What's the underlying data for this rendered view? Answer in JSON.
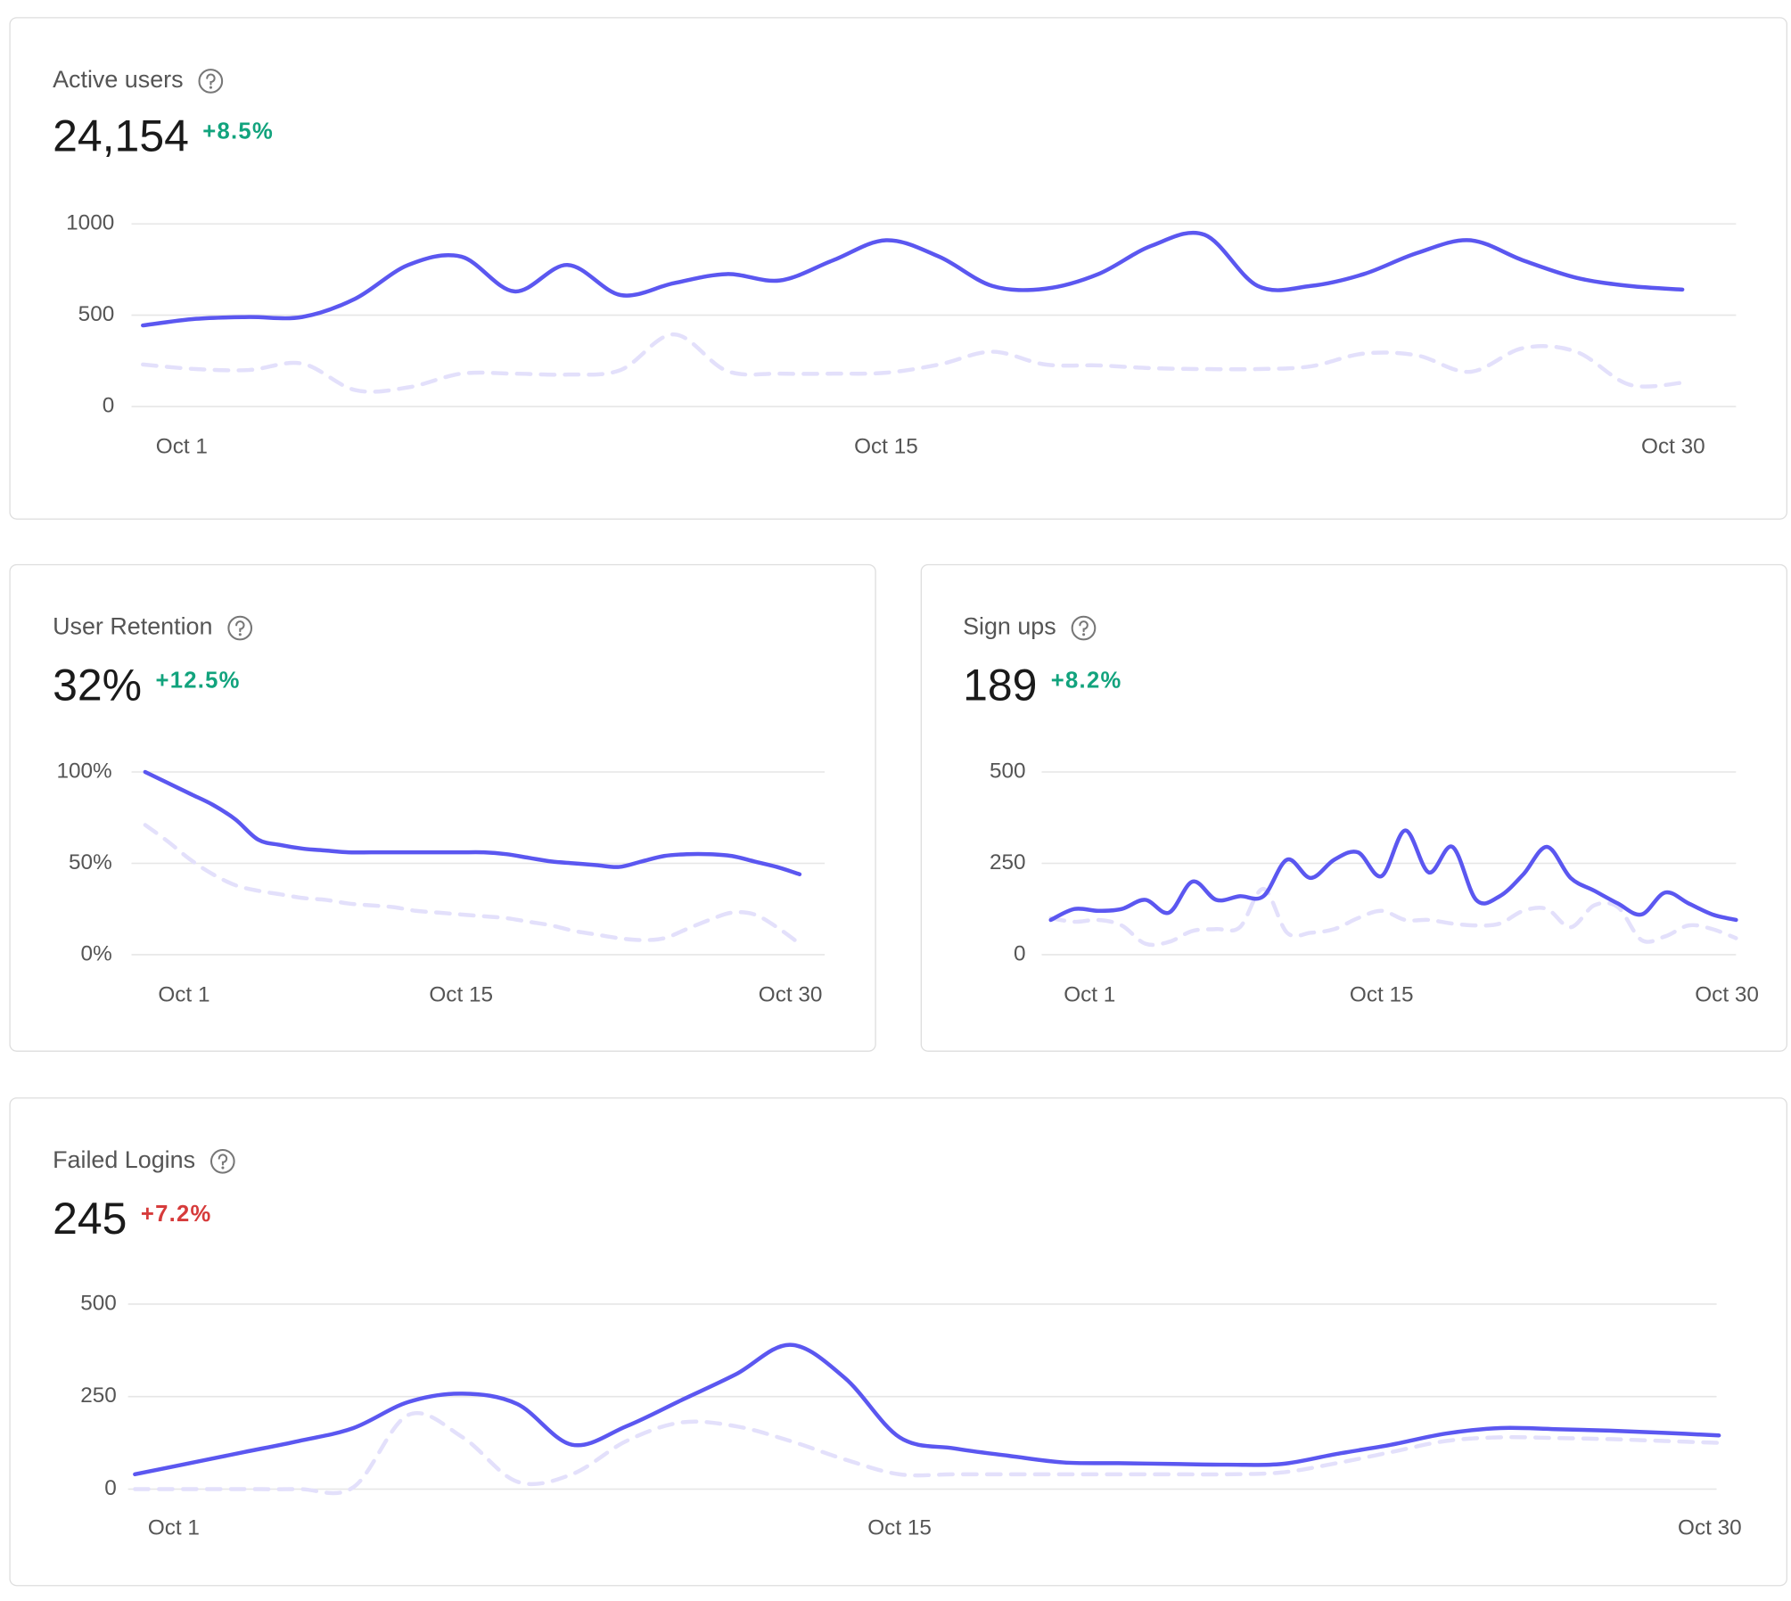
{
  "chart_data": [
    {
      "type": "line",
      "title": "Active users",
      "kpi": "24,154",
      "change": "+8.5%",
      "change_color": "#12a37d",
      "categories": [
        "Oct 1",
        null,
        null,
        null,
        null,
        null,
        null,
        null,
        null,
        null,
        null,
        null,
        null,
        null,
        "Oct 15",
        null,
        null,
        null,
        null,
        null,
        null,
        null,
        null,
        null,
        null,
        null,
        null,
        null,
        null,
        "Oct 30"
      ],
      "ylim": [
        0,
        1000
      ],
      "yticks": [
        0,
        500,
        1000
      ],
      "grid": true,
      "series": [
        {
          "color": "#5b57f0",
          "style": "solid",
          "values": [
            444,
            480,
            490,
            490,
            590,
            775,
            820,
            630,
            775,
            610,
            675,
            725,
            690,
            800,
            910,
            820,
            660,
            645,
            725,
            880,
            940,
            660,
            660,
            725,
            840,
            910,
            800,
            705,
            660,
            640
          ]
        },
        {
          "color": "#e3e0fb",
          "style": "dashed",
          "values": [
            230,
            205,
            200,
            235,
            90,
            105,
            180,
            180,
            175,
            200,
            395,
            195,
            180,
            180,
            185,
            230,
            300,
            230,
            225,
            210,
            205,
            205,
            220,
            290,
            280,
            190,
            320,
            300,
            120,
            130
          ]
        }
      ]
    },
    {
      "type": "line",
      "title": "User Retention",
      "kpi": "32%",
      "change": "+12.5%",
      "change_color": "#12a37d",
      "categories": [
        "Oct 1",
        null,
        null,
        null,
        null,
        null,
        null,
        null,
        null,
        null,
        null,
        null,
        null,
        null,
        "Oct 15",
        null,
        null,
        null,
        null,
        null,
        null,
        null,
        null,
        null,
        null,
        null,
        null,
        null,
        null,
        "Oct 30"
      ],
      "ylim": [
        0,
        100
      ],
      "yticks": [
        {
          "value": 0,
          "label": "0%"
        },
        {
          "value": 50,
          "label": "50%"
        },
        {
          "value": 100,
          "label": "100%"
        }
      ],
      "grid": true,
      "series": [
        {
          "color": "#5b57f0",
          "style": "solid",
          "values": [
            100,
            94,
            88,
            82,
            74,
            63,
            60,
            58,
            57,
            56,
            56,
            56,
            56,
            56,
            56,
            56,
            55,
            53,
            51,
            50,
            49,
            48,
            51,
            54,
            55,
            55,
            54,
            51,
            48,
            44
          ]
        },
        {
          "color": "#e3e0fb",
          "style": "dashed",
          "values": [
            71,
            62,
            52,
            44,
            38,
            35,
            33,
            31,
            30,
            28,
            27,
            26,
            24,
            23,
            22,
            21,
            20,
            18,
            16,
            13,
            11,
            9,
            8,
            9,
            14,
            19,
            23,
            22,
            15,
            6
          ]
        }
      ]
    },
    {
      "type": "line",
      "title": "Sign ups",
      "kpi": "189",
      "change": "+8.2%",
      "change_color": "#12a37d",
      "categories": [
        "Oct 1",
        null,
        null,
        null,
        null,
        null,
        null,
        null,
        null,
        null,
        null,
        null,
        null,
        null,
        "Oct 15",
        null,
        null,
        null,
        null,
        null,
        null,
        null,
        null,
        null,
        null,
        null,
        null,
        null,
        null,
        "Oct 30"
      ],
      "ylim": [
        0,
        500
      ],
      "yticks": [
        0,
        250,
        500
      ],
      "grid": true,
      "series": [
        {
          "color": "#5b57f0",
          "style": "solid",
          "values": [
            95,
            125,
            120,
            125,
            150,
            115,
            200,
            150,
            160,
            160,
            260,
            210,
            260,
            280,
            215,
            340,
            225,
            295,
            150,
            160,
            220,
            295,
            210,
            175,
            140,
            110,
            170,
            140,
            110,
            95
          ]
        },
        {
          "color": "#e3e0fb",
          "style": "dashed",
          "values": [
            100,
            90,
            95,
            80,
            30,
            35,
            65,
            70,
            75,
            180,
            60,
            60,
            70,
            100,
            120,
            95,
            95,
            85,
            80,
            85,
            120,
            125,
            75,
            135,
            130,
            40,
            50,
            80,
            70,
            45
          ]
        }
      ]
    },
    {
      "type": "line",
      "title": "Failed Logins",
      "kpi": "245",
      "change": "+7.2%",
      "change_color": "#d63b3b",
      "categories": [
        "Oct 1",
        null,
        null,
        null,
        null,
        null,
        null,
        null,
        null,
        null,
        null,
        null,
        null,
        null,
        "Oct 15",
        null,
        null,
        null,
        null,
        null,
        null,
        null,
        null,
        null,
        null,
        null,
        null,
        null,
        null,
        "Oct 30"
      ],
      "ylim": [
        0,
        500
      ],
      "yticks": [
        0,
        250,
        500
      ],
      "grid": true,
      "series": [
        {
          "color": "#5b57f0",
          "style": "solid",
          "values": [
            40,
            70,
            100,
            130,
            165,
            235,
            258,
            230,
            120,
            170,
            240,
            310,
            390,
            300,
            140,
            110,
            90,
            72,
            70,
            68,
            66,
            68,
            95,
            120,
            150,
            165,
            162,
            158,
            152,
            145
          ]
        },
        {
          "color": "#e3e0fb",
          "style": "dashed",
          "values": [
            0,
            0,
            0,
            0,
            5,
            200,
            140,
            20,
            40,
            130,
            180,
            170,
            130,
            80,
            40,
            40,
            40,
            40,
            40,
            40,
            40,
            45,
            70,
            100,
            130,
            140,
            138,
            135,
            130,
            125
          ]
        }
      ]
    }
  ]
}
